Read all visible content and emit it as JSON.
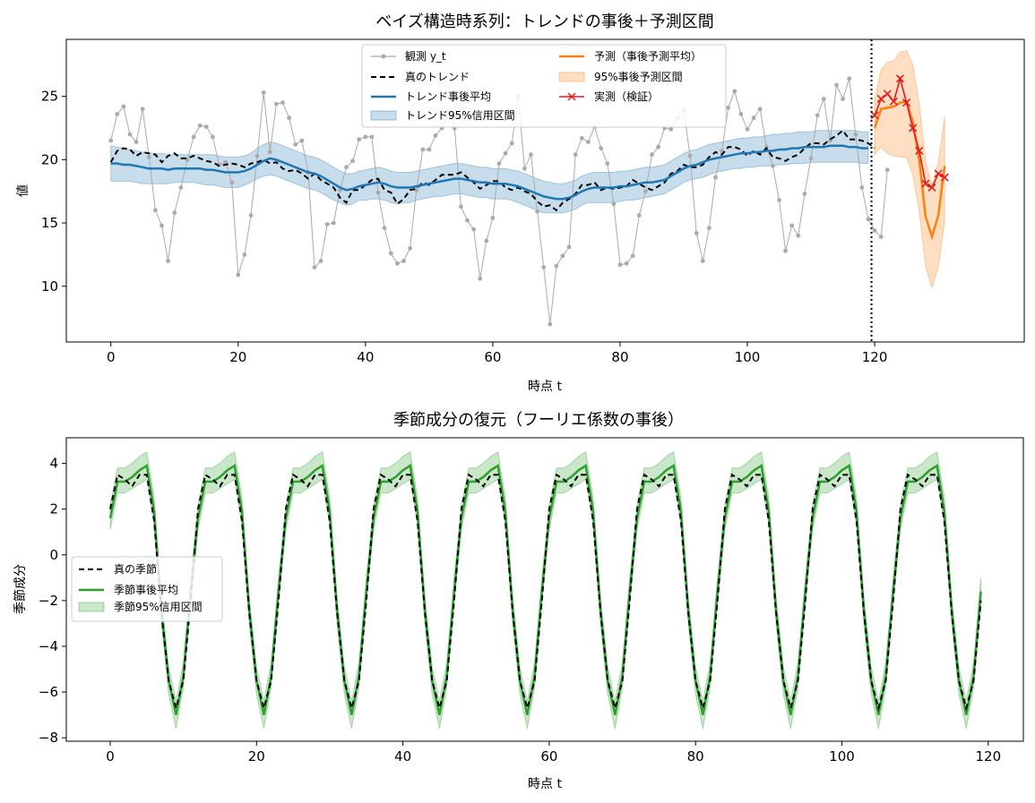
{
  "chart_data": [
    {
      "type": "line",
      "title": "ベイズ構造時系列：トレンドの事後＋予測区間",
      "xlabel": "時点 t",
      "ylabel": "値",
      "xlim": [
        -7,
        143.5
      ],
      "ylim": [
        5.6,
        29.5
      ],
      "xticks": [
        0,
        20,
        40,
        60,
        80,
        100,
        120
      ],
      "yticks": [
        10,
        15,
        20,
        25
      ],
      "grid": false,
      "legend": "top-center",
      "legend_columns": 2,
      "vline": {
        "x": 119.5,
        "style": "dotted",
        "color": "#000000"
      },
      "series": [
        {
          "name": "観測 y_t",
          "color": "#aaaaaa",
          "style": "solid-markers",
          "x_start": 0,
          "values": [
            21.5,
            23.6,
            24.2,
            22.0,
            21.4,
            24.0,
            20.2,
            16.0,
            14.8,
            12.0,
            15.8,
            17.8,
            20.0,
            21.8,
            22.7,
            22.6,
            21.8,
            19.6,
            19.8,
            18.2,
            10.9,
            12.5,
            15.6,
            20.3,
            25.3,
            20.6,
            24.4,
            24.5,
            23.3,
            21.2,
            21.5,
            19.0,
            11.5,
            12.0,
            14.9,
            15.0,
            17.6,
            19.4,
            19.9,
            21.6,
            21.8,
            21.8,
            17.4,
            14.6,
            12.6,
            11.8,
            12.0,
            13.0,
            17.6,
            20.8,
            20.8,
            21.9,
            22.5,
            23.9,
            22.5,
            16.3,
            15.2,
            14.5,
            10.6,
            13.6,
            15.4,
            19.7,
            20.5,
            21.3,
            25.0,
            19.3,
            20.4,
            15.9,
            11.5,
            7.0,
            11.6,
            12.4,
            13.1,
            20.4,
            21.7,
            21.4,
            22.6,
            20.9,
            19.7,
            16.5,
            11.7,
            11.8,
            12.4,
            15.6,
            17.5,
            20.4,
            21.0,
            22.5,
            22.4,
            23.3,
            23.9,
            20.3,
            14.2,
            12.0,
            14.6,
            18.6,
            20.7,
            24.1,
            25.4,
            23.6,
            22.4,
            23.3,
            24.0,
            21.0,
            19.5,
            16.8,
            12.8,
            14.8,
            14.0,
            17.3,
            20.1,
            23.5,
            24.8,
            21.5,
            25.9,
            24.8,
            26.4,
            22.0,
            17.8,
            15.3,
            14.4,
            13.9,
            19.2
          ]
        },
        {
          "name": "真のトレンド",
          "color": "#000000",
          "style": "dashed",
          "x_start": 0,
          "values": [
            19.8,
            20.7,
            20.9,
            20.8,
            20.3,
            20.6,
            20.5,
            20.4,
            19.8,
            20.3,
            20.5,
            20.1,
            20.1,
            20.3,
            20.1,
            19.9,
            19.8,
            19.5,
            19.6,
            19.7,
            19.6,
            19.4,
            19.7,
            19.8,
            20.0,
            19.7,
            19.8,
            19.3,
            19.1,
            19.2,
            18.9,
            18.5,
            18.9,
            18.4,
            18.1,
            17.8,
            17.0,
            16.6,
            17.6,
            17.6,
            18.0,
            18.4,
            18.5,
            17.6,
            17.4,
            16.5,
            16.9,
            17.6,
            17.7,
            18.2,
            18.0,
            18.4,
            18.8,
            18.8,
            18.8,
            19.0,
            18.6,
            18.2,
            17.7,
            18.0,
            18.3,
            18.3,
            17.8,
            17.6,
            17.8,
            17.5,
            17.3,
            16.7,
            16.3,
            16.4,
            16.0,
            16.6,
            16.9,
            17.3,
            18.0,
            18.0,
            18.2,
            17.6,
            17.8,
            17.7,
            17.8,
            17.9,
            18.4,
            18.1,
            17.8,
            17.6,
            17.9,
            18.2,
            18.9,
            19.1,
            19.6,
            19.4,
            19.4,
            19.6,
            20.2,
            20.6,
            20.4,
            21.0,
            21.0,
            20.8,
            20.3,
            20.7,
            20.4,
            20.9,
            20.2,
            20.1,
            19.9,
            20.2,
            20.4,
            20.9,
            21.3,
            21.3,
            21.2,
            21.6,
            21.9,
            22.3,
            21.6,
            21.6,
            21.5,
            21.3,
            20.9
          ]
        },
        {
          "name": "トレンド事後平均",
          "color": "#1f77b4",
          "style": "solid",
          "x_start": 0,
          "values": [
            19.7,
            19.7,
            19.6,
            19.6,
            19.5,
            19.4,
            19.3,
            19.3,
            19.3,
            19.2,
            19.3,
            19.3,
            19.3,
            19.3,
            19.3,
            19.2,
            19.2,
            19.1,
            19.0,
            19.0,
            19.0,
            19.1,
            19.3,
            19.6,
            19.9,
            20.1,
            20.0,
            19.8,
            19.6,
            19.4,
            19.2,
            19.0,
            18.9,
            18.7,
            18.4,
            18.1,
            17.8,
            17.6,
            17.7,
            17.9,
            18.0,
            18.1,
            18.2,
            18.1,
            17.9,
            17.8,
            17.8,
            17.8,
            17.9,
            18.0,
            18.1,
            18.2,
            18.3,
            18.4,
            18.5,
            18.5,
            18.4,
            18.3,
            18.2,
            18.2,
            18.1,
            18.1,
            18.1,
            18.0,
            17.9,
            17.7,
            17.5,
            17.3,
            17.1,
            17.0,
            16.9,
            16.9,
            17.0,
            17.2,
            17.5,
            17.7,
            17.8,
            17.8,
            17.8,
            17.8,
            17.9,
            17.9,
            18.0,
            18.1,
            18.2,
            18.2,
            18.3,
            18.4,
            18.7,
            19.0,
            19.3,
            19.5,
            19.6,
            19.8,
            20.0,
            20.1,
            20.2,
            20.3,
            20.4,
            20.5,
            20.5,
            20.6,
            20.6,
            20.7,
            20.7,
            20.8,
            20.8,
            20.9,
            20.9,
            21.0,
            21.0,
            21.0,
            21.0,
            21.1,
            21.1,
            21.1,
            21.0,
            21.0,
            20.9,
            20.9
          ]
        },
        {
          "name": "トレンド95%信用区間",
          "color": "#1f77b4",
          "style": "band",
          "x_start": 0,
          "lower": [
            18.3,
            18.3,
            18.3,
            18.3,
            18.2,
            18.1,
            18.1,
            18.1,
            18.1,
            18.1,
            18.2,
            18.2,
            18.2,
            18.2,
            18.1,
            18.0,
            18.0,
            17.9,
            17.8,
            17.8,
            17.8,
            18.0,
            18.2,
            18.5,
            18.7,
            18.8,
            18.7,
            18.5,
            18.3,
            18.1,
            17.9,
            17.7,
            17.6,
            17.4,
            17.1,
            16.8,
            16.6,
            16.4,
            16.5,
            16.8,
            16.8,
            16.9,
            16.9,
            16.8,
            16.6,
            16.5,
            16.6,
            16.6,
            16.8,
            16.9,
            17.0,
            17.1,
            17.1,
            17.2,
            17.3,
            17.3,
            17.2,
            17.1,
            17.0,
            17.0,
            16.9,
            16.9,
            16.9,
            16.8,
            16.6,
            16.4,
            16.2,
            16.0,
            15.8,
            15.8,
            15.8,
            15.8,
            15.9,
            16.1,
            16.4,
            16.6,
            16.6,
            16.6,
            16.6,
            16.6,
            16.7,
            16.8,
            16.8,
            16.9,
            17.0,
            17.1,
            17.2,
            17.3,
            17.6,
            17.9,
            18.2,
            18.4,
            18.5,
            18.6,
            18.8,
            19.0,
            19.1,
            19.2,
            19.3,
            19.3,
            19.4,
            19.4,
            19.5,
            19.5,
            19.5,
            19.6,
            19.6,
            19.7,
            19.7,
            19.7,
            19.8,
            19.8,
            19.8,
            19.8,
            19.8,
            19.8,
            19.8,
            19.8,
            19.7,
            19.7
          ],
          "upper": [
            21.1,
            21.0,
            20.9,
            20.8,
            20.7,
            20.6,
            20.5,
            20.5,
            20.5,
            20.4,
            20.4,
            20.4,
            20.4,
            20.4,
            20.4,
            20.4,
            20.4,
            20.3,
            20.2,
            20.2,
            20.2,
            20.3,
            20.5,
            20.9,
            21.2,
            21.4,
            21.3,
            21.1,
            20.9,
            20.7,
            20.5,
            20.3,
            20.2,
            20.0,
            19.7,
            19.4,
            19.1,
            18.9,
            18.9,
            19.1,
            19.2,
            19.3,
            19.4,
            19.3,
            19.1,
            19.0,
            19.0,
            19.0,
            19.1,
            19.2,
            19.3,
            19.4,
            19.5,
            19.6,
            19.7,
            19.7,
            19.6,
            19.5,
            19.4,
            19.4,
            19.3,
            19.3,
            19.3,
            19.2,
            19.1,
            18.9,
            18.7,
            18.5,
            18.3,
            18.2,
            18.1,
            18.1,
            18.2,
            18.4,
            18.7,
            18.9,
            19.0,
            19.0,
            19.0,
            19.0,
            19.1,
            19.1,
            19.2,
            19.3,
            19.4,
            19.4,
            19.5,
            19.6,
            19.9,
            20.2,
            20.5,
            20.7,
            20.8,
            21.0,
            21.2,
            21.3,
            21.4,
            21.5,
            21.6,
            21.7,
            21.7,
            21.8,
            21.8,
            21.9,
            22.0,
            22.0,
            22.1,
            22.1,
            22.2,
            22.2,
            22.2,
            22.3,
            22.3,
            22.3,
            22.3,
            22.3,
            22.3,
            22.3,
            22.2,
            22.2
          ]
        },
        {
          "name": "予測（事後予測平均）",
          "color": "#ff7f0e",
          "style": "solid",
          "x_start": 120,
          "values": [
            22.5,
            24.0,
            24.1,
            24.2,
            24.5,
            24.6,
            23.0,
            20.0,
            15.5,
            13.9,
            15.6,
            19.5
          ]
        },
        {
          "name": "95%事後予測区間",
          "color": "#ff7f0e",
          "style": "band",
          "x_start": 120,
          "lower": [
            20.4,
            21.0,
            20.5,
            20.3,
            20.2,
            20.2,
            18.8,
            15.9,
            11.6,
            9.9,
            11.5,
            15.1
          ],
          "upper": [
            24.7,
            27.1,
            27.7,
            27.8,
            28.5,
            28.6,
            27.5,
            24.4,
            19.9,
            18.0,
            19.8,
            23.4
          ]
        },
        {
          "name": "実測（検証）",
          "color": "#e41a1c",
          "style": "solid-x-markers",
          "x_start": 120,
          "values": [
            23.5,
            24.8,
            25.2,
            24.6,
            26.4,
            24.5,
            22.5,
            20.7,
            18.1,
            17.8,
            18.9,
            18.6
          ]
        }
      ]
    },
    {
      "type": "line",
      "title": "季節成分の復元（フーリエ係数の事後）",
      "xlabel": "時点 t",
      "ylabel": "季節成分",
      "xlim": [
        -6,
        124.8
      ],
      "ylim": [
        -8.15,
        5.12
      ],
      "xticks": [
        0,
        20,
        40,
        60,
        80,
        100,
        120
      ],
      "yticks": [
        -8,
        -6,
        -4,
        -2,
        0,
        2,
        4
      ],
      "grid": false,
      "legend": "center-left",
      "period": 12,
      "cycle_note": "one 12-step cycle repeated over t = 0 … 119",
      "series": [
        {
          "name": "真の季節",
          "color": "#000000",
          "style": "dashed",
          "cycle": [
            2.0,
            3.5,
            3.3,
            3.0,
            3.5,
            3.5,
            1.5,
            -2.5,
            -5.5,
            -6.7,
            -5.5,
            -2.0
          ]
        },
        {
          "name": "季節事後平均",
          "color": "#2ca02c",
          "style": "solid",
          "cycle": [
            1.6,
            3.2,
            3.2,
            3.4,
            3.7,
            3.9,
            1.9,
            -2.4,
            -5.5,
            -7.0,
            -5.3,
            -1.6
          ]
        },
        {
          "name": "季節95%信用区間",
          "color": "#2ca02c",
          "style": "band",
          "cycle_lower": [
            1.1,
            2.7,
            2.7,
            2.9,
            3.1,
            3.3,
            1.3,
            -3.0,
            -6.1,
            -7.6,
            -5.8,
            -2.1
          ],
          "cycle_upper": [
            2.2,
            3.8,
            3.8,
            4.0,
            4.3,
            4.5,
            2.5,
            -1.8,
            -4.9,
            -6.4,
            -4.7,
            -1.0
          ]
        }
      ]
    }
  ]
}
